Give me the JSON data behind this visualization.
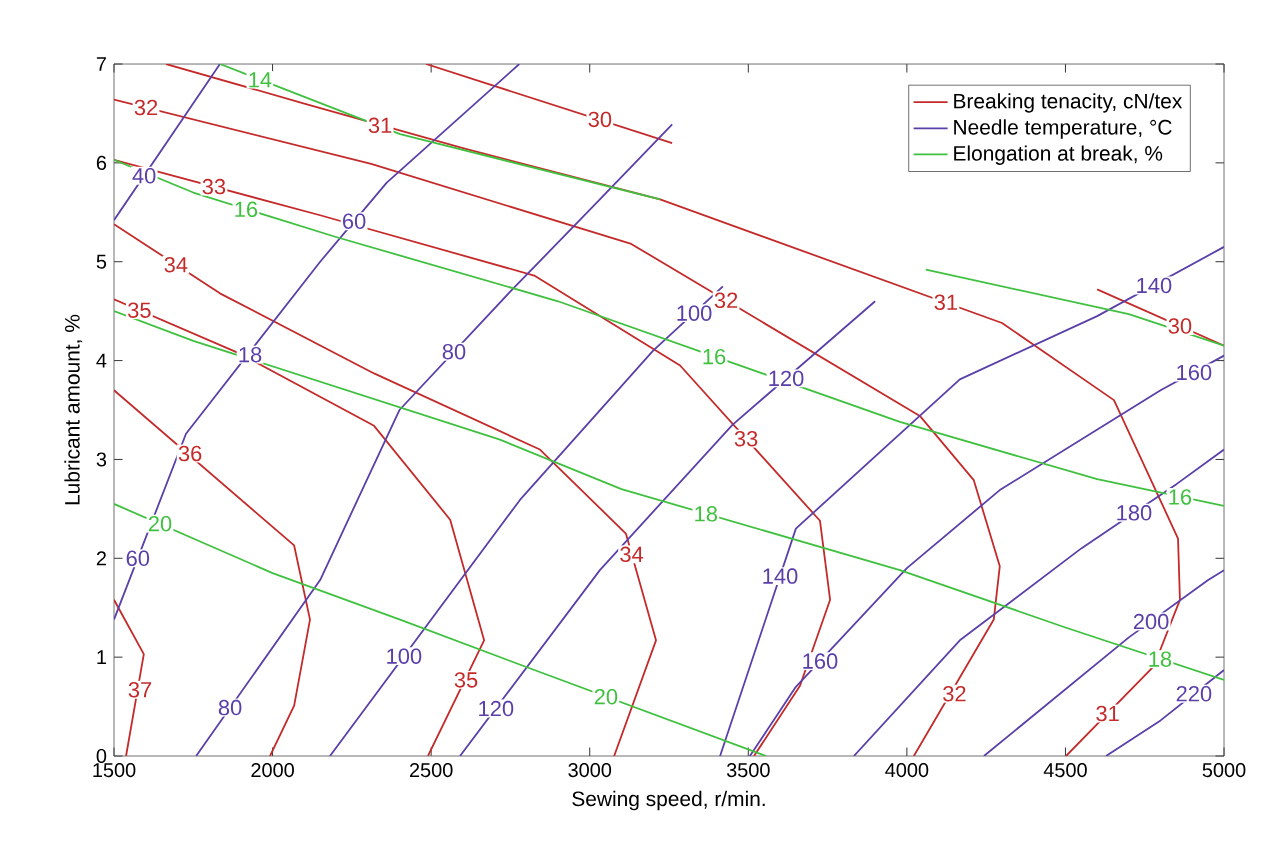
{
  "chart_data": {
    "type": "line",
    "xlabel": "Sewing speed, r/min.",
    "ylabel": "Lubricant amount, %",
    "xlim": [
      1500,
      5000
    ],
    "ylim": [
      0,
      7
    ],
    "xticks": [
      1500,
      2000,
      2500,
      3000,
      3500,
      4000,
      4500,
      5000
    ],
    "yticks": [
      0,
      1,
      2,
      3,
      4,
      5,
      6,
      7
    ],
    "legend": "top right",
    "grid": false,
    "series": [
      {
        "name": "Breaking tenacity, cN/tex",
        "color": "#c42a2a",
        "x": [
          1500,
          1594,
          1538
        ],
        "values": [
          1.58,
          1.03,
          0
        ]
      },
      {
        "color": "#c42a2a",
        "x": [
          1500,
          2068,
          2118,
          2068,
          1992
        ],
        "values": [
          3.7,
          2.13,
          1.38,
          0.51,
          0
        ]
      },
      {
        "color": "#c42a2a",
        "x": [
          1500,
          1897,
          2320,
          2560,
          2667,
          2490
        ],
        "values": [
          4.62,
          4.07,
          3.34,
          2.39,
          1.17,
          0
        ]
      },
      {
        "color": "#c42a2a",
        "x": [
          1500,
          1834,
          2320,
          2843,
          3114,
          3209,
          3077
        ],
        "values": [
          5.38,
          4.68,
          3.87,
          3.1,
          2.25,
          1.17,
          0
        ]
      },
      {
        "color": "#c42a2a",
        "x": [
          1500,
          2150,
          2825,
          3285,
          3726,
          3758,
          3663,
          3518
        ],
        "values": [
          6.03,
          5.47,
          4.86,
          3.95,
          2.38,
          1.58,
          0.71,
          0
        ]
      },
      {
        "color": "#c42a2a",
        "x": [
          1500,
          2311,
          3131,
          4041,
          4211,
          4293,
          4274,
          4022
        ],
        "values": [
          6.64,
          5.99,
          5.18,
          3.44,
          2.79,
          1.92,
          1.38,
          0
        ]
      },
      {
        "color": "#c42a2a",
        "x": [
          1664,
          2100,
          2600,
          3222,
          4300,
          4653,
          4855,
          4861,
          4779,
          4502
        ],
        "values": [
          7,
          6.6,
          6.15,
          5.63,
          4.38,
          3.6,
          2.2,
          1.58,
          0.91,
          0
        ]
      },
      {
        "color": "#c42a2a",
        "x": [
          2484,
          3260
        ],
        "values": [
          7,
          6.2
        ]
      },
      {
        "color": "#c42a2a",
        "x": [
          4600,
          5000
        ],
        "values": [
          4.72,
          4.15
        ]
      },
      {
        "name": "Needle temperature, °C",
        "color": "#5b3fa8",
        "x": [
          1500,
          1834
        ],
        "values": [
          5.42,
          7
        ]
      },
      {
        "color": "#5b3fa8",
        "x": [
          1500,
          1727,
          2150,
          2360,
          2778
        ],
        "values": [
          1.38,
          3.26,
          5.0,
          5.8,
          7
        ]
      },
      {
        "color": "#5b3fa8",
        "x": [
          1759,
          2150,
          2400,
          2750,
          3032,
          3260
        ],
        "values": [
          0,
          1.78,
          3.5,
          4.7,
          5.63,
          6.39
        ]
      },
      {
        "color": "#5b3fa8",
        "x": [
          2181,
          2780,
          3200,
          3420
        ],
        "values": [
          0,
          2.59,
          4.1,
          4.75
        ]
      },
      {
        "color": "#5b3fa8",
        "x": [
          2591,
          3032,
          3450,
          3900
        ],
        "values": [
          0,
          1.88,
          3.35,
          4.6
        ]
      },
      {
        "color": "#5b3fa8",
        "x": [
          3411,
          3650,
          4167,
          4600,
          5000
        ],
        "values": [
          0,
          2.3,
          3.81,
          4.45,
          5.15
        ]
      },
      {
        "color": "#5b3fa8",
        "x": [
          3505,
          3650,
          4000,
          4293,
          4800,
          5000
        ],
        "values": [
          0,
          0.7,
          1.9,
          2.69,
          3.7,
          4.05
        ]
      },
      {
        "color": "#5b3fa8",
        "x": [
          3833,
          4167,
          4550,
          4850,
          5000
        ],
        "values": [
          0,
          1.17,
          2.1,
          2.75,
          3.1
        ]
      },
      {
        "color": "#5b3fa8",
        "x": [
          4243,
          4700,
          4950,
          5000
        ],
        "values": [
          0,
          1.2,
          1.78,
          1.88
        ]
      },
      {
        "color": "#5b3fa8",
        "x": [
          4628,
          4800,
          5000
        ],
        "values": [
          0,
          0.36,
          0.87
        ]
      },
      {
        "name": "Elongation at break, %",
        "color": "#3fc03f",
        "x": [
          1834,
          2402,
          3222
        ],
        "values": [
          7,
          6.29,
          5.63
        ]
      },
      {
        "color": "#3fc03f",
        "x": [
          4060,
          4700,
          5000
        ],
        "values": [
          4.92,
          4.47,
          4.15
        ]
      },
      {
        "color": "#3fc03f",
        "x": [
          1500,
          1750,
          2200,
          2900,
          3978,
          4600,
          5000
        ],
        "values": [
          6.03,
          5.7,
          5.25,
          4.6,
          3.38,
          2.8,
          2.53
        ]
      },
      {
        "color": "#3fc03f",
        "x": [
          1500,
          1750,
          2717,
          3100,
          3978,
          4500,
          5000
        ],
        "values": [
          4.5,
          4.2,
          3.2,
          2.7,
          1.88,
          1.3,
          0.77
        ]
      },
      {
        "color": "#3fc03f",
        "x": [
          1500,
          2000,
          2402,
          2800,
          3556
        ],
        "values": [
          2.55,
          1.85,
          1.38,
          0.9,
          0
        ]
      }
    ],
    "annotations": [
      {
        "text": "37",
        "x": 1582,
        "y": 0.67
      },
      {
        "text": "36",
        "x": 1740,
        "y": 3.06
      },
      {
        "text": "35",
        "x": 1580,
        "y": 4.51
      },
      {
        "text": "35",
        "x": 2610,
        "y": 0.77
      },
      {
        "text": "34",
        "x": 1695,
        "y": 4.97
      },
      {
        "text": "34",
        "x": 3132,
        "y": 2.04
      },
      {
        "text": "33",
        "x": 1815,
        "y": 5.76
      },
      {
        "text": "33",
        "x": 3493,
        "y": 3.21
      },
      {
        "text": "32",
        "x": 1601,
        "y": 6.56
      },
      {
        "text": "32",
        "x": 3430,
        "y": 4.61
      },
      {
        "text": "32",
        "x": 4150,
        "y": 0.63
      },
      {
        "text": "31",
        "x": 2339,
        "y": 6.38
      },
      {
        "text": "31",
        "x": 4123,
        "y": 4.59
      },
      {
        "text": "31",
        "x": 4633,
        "y": 0.43
      },
      {
        "text": "30",
        "x": 3032,
        "y": 6.44
      },
      {
        "text": "30",
        "x": 4861,
        "y": 4.35
      },
      {
        "text": "40",
        "x": 1595,
        "y": 5.87
      },
      {
        "text": "60",
        "x": 1575,
        "y": 2.0
      },
      {
        "text": "60",
        "x": 2257,
        "y": 5.41
      },
      {
        "text": "80",
        "x": 1866,
        "y": 0.49
      },
      {
        "text": "80",
        "x": 2572,
        "y": 4.09
      },
      {
        "text": "100",
        "x": 2414,
        "y": 1.01
      },
      {
        "text": "100",
        "x": 3329,
        "y": 4.48
      },
      {
        "text": "120",
        "x": 2704,
        "y": 0.48
      },
      {
        "text": "120",
        "x": 3619,
        "y": 3.82
      },
      {
        "text": "140",
        "x": 3600,
        "y": 1.82
      },
      {
        "text": "140",
        "x": 4779,
        "y": 4.76
      },
      {
        "text": "160",
        "x": 3726,
        "y": 0.96
      },
      {
        "text": "160",
        "x": 4905,
        "y": 3.88
      },
      {
        "text": "180",
        "x": 4716,
        "y": 2.46
      },
      {
        "text": "200",
        "x": 4770,
        "y": 1.36
      },
      {
        "text": "220",
        "x": 4905,
        "y": 0.63
      },
      {
        "text": "14",
        "x": 1960,
        "y": 6.84
      },
      {
        "text": "16",
        "x": 1916,
        "y": 5.53
      },
      {
        "text": "16",
        "x": 3392,
        "y": 4.04
      },
      {
        "text": "16",
        "x": 4861,
        "y": 2.62
      },
      {
        "text": "18",
        "x": 1929,
        "y": 4.06
      },
      {
        "text": "18",
        "x": 3366,
        "y": 2.45
      },
      {
        "text": "18",
        "x": 4798,
        "y": 0.98
      },
      {
        "text": "20",
        "x": 1645,
        "y": 2.35
      },
      {
        "text": "20",
        "x": 3051,
        "y": 0.6
      }
    ]
  }
}
